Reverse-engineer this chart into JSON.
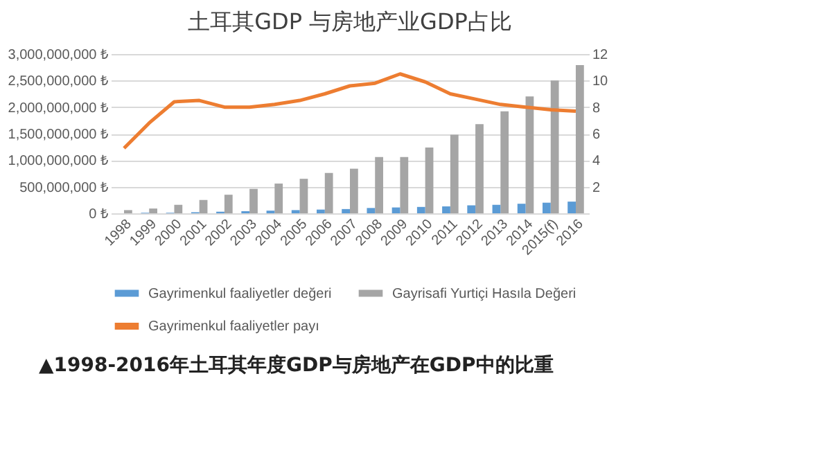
{
  "chart_data": {
    "type": "bar",
    "title": "土耳其GDP 与房地产业GDP占比",
    "categories": [
      "1998",
      "1999",
      "2000",
      "2001",
      "2002",
      "2003",
      "2004",
      "2005",
      "2006",
      "2007",
      "2008",
      "2009",
      "2010",
      "2011",
      "2012",
      "2013",
      "2014",
      "2015(f)",
      "2016"
    ],
    "series": [
      {
        "name": "Gayrimenkul faaliyetler değeri",
        "color": "#5b9bd5",
        "values": [
          0,
          10000000,
          10000000,
          20000000,
          30000000,
          40000000,
          50000000,
          60000000,
          70000000,
          80000000,
          100000000,
          110000000,
          120000000,
          130000000,
          150000000,
          160000000,
          180000000,
          200000000,
          220000000
        ]
      },
      {
        "name": "Gayrisafi Yurtiçi Hasıla Değeri",
        "color": "#a5a5a5",
        "values": [
          60000000,
          90000000,
          160000000,
          250000000,
          350000000,
          460000000,
          560000000,
          650000000,
          760000000,
          840000000,
          1060000000,
          1060000000,
          1240000000,
          1480000000,
          1680000000,
          1920000000,
          2200000000,
          2500000000,
          2790000000
        ]
      },
      {
        "name": "Gayrimenkul faaliyetler payı",
        "color": "#ed7d31",
        "type": "line",
        "axis": "y2",
        "values": [
          4.9,
          6.8,
          8.4,
          8.5,
          8.0,
          8.0,
          8.2,
          8.5,
          9.0,
          9.6,
          9.8,
          10.5,
          9.9,
          9.0,
          8.6,
          8.2,
          8.0,
          7.8,
          7.7
        ]
      }
    ],
    "ylim": [
      0,
      3000000000
    ],
    "yticks": [
      {
        "value": 0,
        "label": "0 ₺"
      },
      {
        "value": 500000000,
        "label": "500,000,000 ₺"
      },
      {
        "value": 1000000000,
        "label": "1,000,000,000 ₺"
      },
      {
        "value": 1500000000,
        "label": "1,500,000,000 ₺"
      },
      {
        "value": 2000000000,
        "label": "2,000,000,000 ₺"
      },
      {
        "value": 2500000000,
        "label": "2,500,000,000 ₺"
      },
      {
        "value": 3000000000,
        "label": "3,000,000,000 ₺"
      }
    ],
    "y2lim": [
      0,
      12
    ],
    "y2ticks": [
      2,
      4,
      6,
      8,
      10,
      12
    ],
    "grid": "y",
    "legend": "bottom",
    "annotations": [
      "▲1998-2016年土耳其年度GDP与房地产在GDP中的比重"
    ]
  }
}
